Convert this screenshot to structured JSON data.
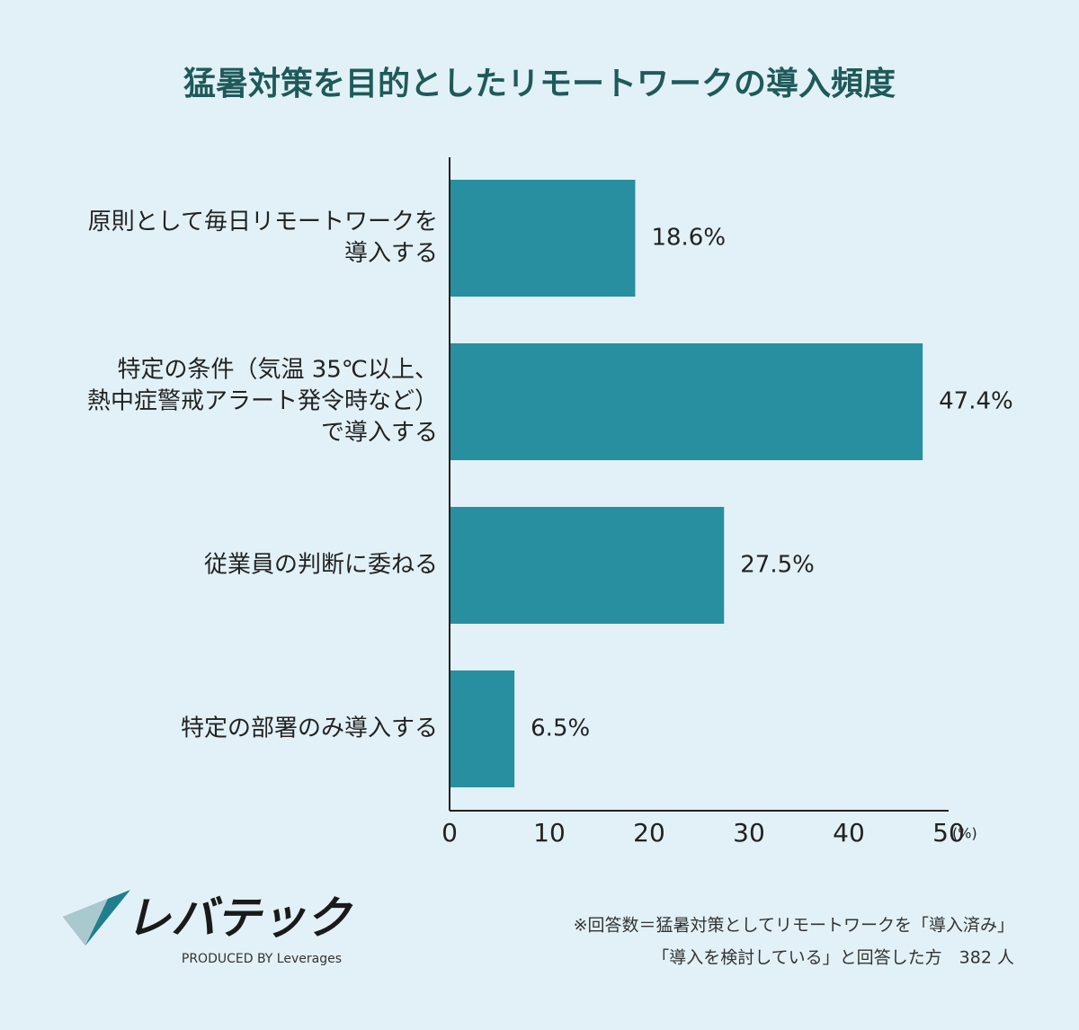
{
  "chart_data": {
    "type": "bar",
    "orientation": "horizontal",
    "title": "猛暑対策を目的としたリモートワークの導入頻度",
    "categories": [
      [
        "原則として毎日リモートワークを",
        "導入する"
      ],
      [
        "特定の条件（気温 35℃以上、",
        "熱中症警戒アラート発令時など）",
        "で導入する"
      ],
      [
        "従業員の判断に委ねる"
      ],
      [
        "特定の部署のみ導入する"
      ]
    ],
    "values": [
      18.6,
      47.4,
      27.5,
      6.5
    ],
    "value_labels": [
      "18.6%",
      "47.4%",
      "27.5%",
      "6.5%"
    ],
    "color": "#288fa0",
    "x_label": "(%)",
    "xlim": [
      0,
      50
    ],
    "xticks": [
      0,
      10,
      20,
      30,
      40,
      50
    ]
  },
  "footer": {
    "logo": "レバテック",
    "logo_sub": "PRODUCED BY Leverages",
    "note": [
      "※回答数＝猛暑対策としてリモートワークを「導入済み」",
      "「導入を検討している」と回答した方　382 人"
    ]
  }
}
